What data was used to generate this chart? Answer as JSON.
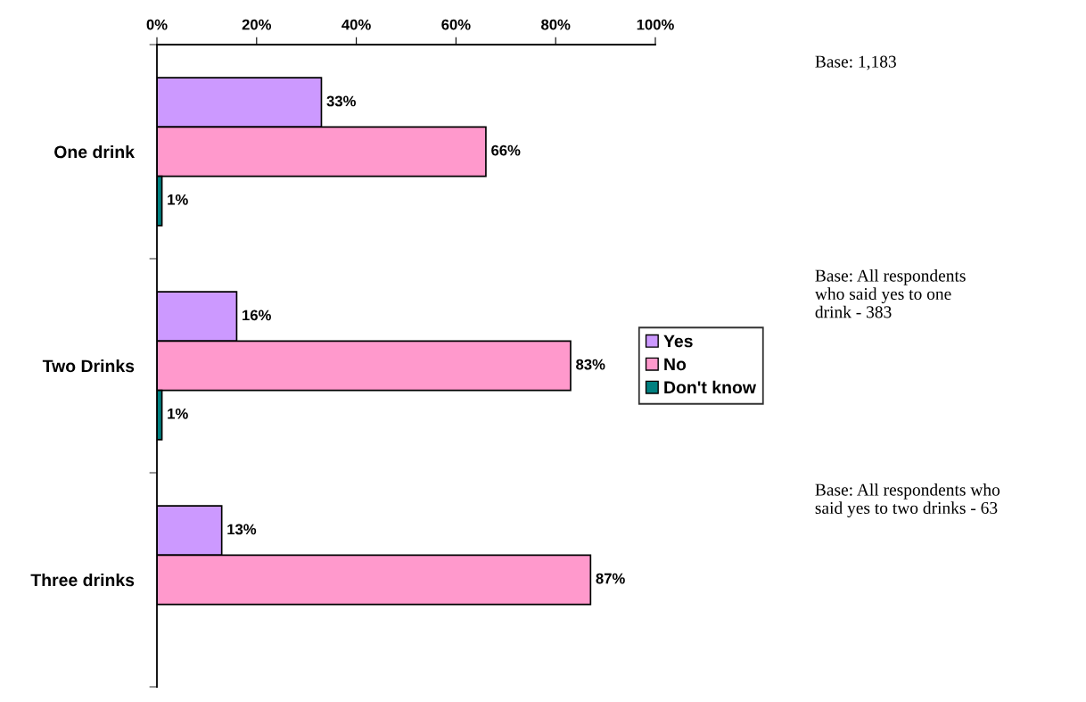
{
  "chart_data": {
    "type": "bar",
    "orientation": "horizontal",
    "categories": [
      "One drink",
      "Two Drinks",
      "Three drinks"
    ],
    "series": [
      {
        "name": "Yes",
        "color": "#cc99ff",
        "values": [
          33,
          16,
          13
        ],
        "value_labels": [
          "33%",
          "16%",
          "13%"
        ]
      },
      {
        "name": "No",
        "color": "#ff99cc",
        "values": [
          66,
          83,
          87
        ],
        "value_labels": [
          "66%",
          "83%",
          "87%"
        ]
      },
      {
        "name": "Don't know",
        "color": "#008080",
        "values": [
          1,
          1,
          null
        ],
        "value_labels": [
          "1%",
          "1%",
          null
        ]
      }
    ],
    "xlim": [
      0,
      100
    ],
    "xticks": [
      {
        "value": 0,
        "label": "0%"
      },
      {
        "value": 20,
        "label": "20%"
      },
      {
        "value": 40,
        "label": "40%"
      },
      {
        "value": 60,
        "label": "60%"
      },
      {
        "value": 80,
        "label": "80%"
      },
      {
        "value": 100,
        "label": "100%"
      }
    ],
    "legend": "right",
    "grid": false,
    "annotations": [
      "Base: 1,183",
      "Base: All respondents\nwho said yes to one\ndrink - 383",
      "Base: All respondents who\nsaid yes to two drinks - 63"
    ]
  }
}
